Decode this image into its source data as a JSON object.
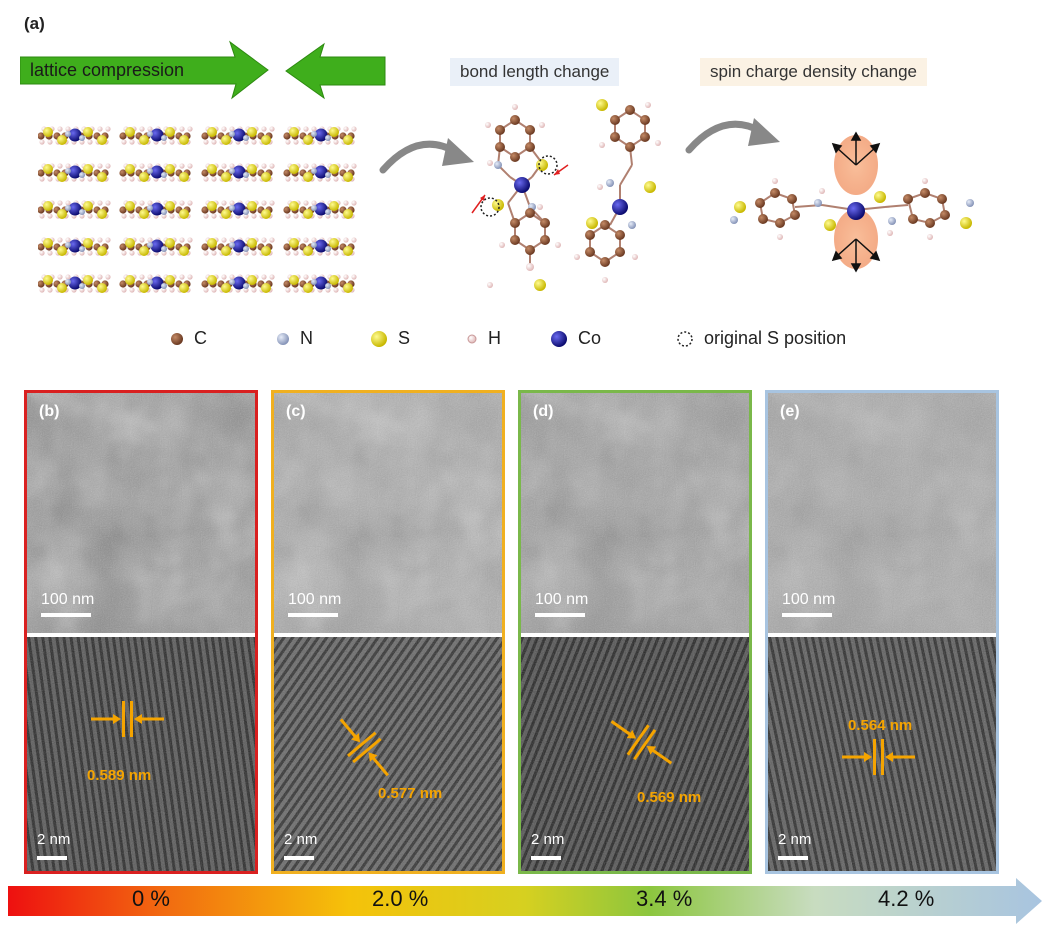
{
  "panel_a": {
    "label": "(a)",
    "arrow_text": "lattice compression",
    "bond_text": "bond length change",
    "spin_text": "spin charge density change"
  },
  "legend": [
    {
      "icon": "carbon-atom-icon",
      "label": "C",
      "color": "#8b5a3c"
    },
    {
      "icon": "nitrogen-atom-icon",
      "label": "N",
      "color": "#aab8d8"
    },
    {
      "icon": "sulfur-atom-icon",
      "label": "S",
      "color": "#e6e020"
    },
    {
      "icon": "hydrogen-atom-icon",
      "label": "H",
      "color": "#f2d8d8"
    },
    {
      "icon": "cobalt-atom-icon",
      "label": "Co",
      "color": "#1c1c9a"
    },
    {
      "icon": "original-s-position-icon",
      "label": "original S position",
      "color": "#222222"
    }
  ],
  "panels": [
    {
      "label": "(b)",
      "border": "#d92020",
      "scale_top": "100 nm",
      "scale_bottom": "2 nm",
      "d_spacing": "0.589 nm"
    },
    {
      "label": "(c)",
      "border": "#f0b020",
      "scale_top": "100 nm",
      "scale_bottom": "2 nm",
      "d_spacing": "0.577 nm"
    },
    {
      "label": "(d)",
      "border": "#7ab84a",
      "scale_top": "100 nm",
      "scale_bottom": "2 nm",
      "d_spacing": "0.569 nm"
    },
    {
      "label": "(e)",
      "border": "#a8c4e0",
      "scale_top": "100 nm",
      "scale_bottom": "2 nm",
      "d_spacing": "0.564 nm"
    }
  ],
  "strain_bar": {
    "values": [
      "0 %",
      "2.0 %",
      "3.4 %",
      "4.2 %"
    ]
  }
}
